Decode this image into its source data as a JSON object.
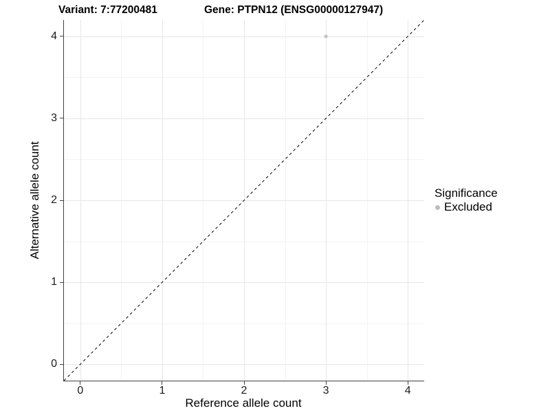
{
  "header": {
    "variant_title": "Variant: 7:77200481",
    "gene_title": "Gene: PTPN12 (ENSG00000127947)"
  },
  "chart_data": {
    "type": "scatter",
    "xlabel": "Reference allele count",
    "ylabel": "Alternative allele count",
    "xlim": [
      -0.2,
      4.2
    ],
    "ylim": [
      -0.2,
      4.2
    ],
    "x_ticks": [
      0,
      1,
      2,
      3,
      4
    ],
    "y_ticks": [
      0,
      1,
      2,
      3,
      4
    ],
    "grid": "major-and-minor",
    "points": [
      {
        "x": 3,
        "y": 4,
        "series": "Excluded"
      }
    ],
    "reference_line": {
      "style": "dashed",
      "x1": -0.2,
      "y1": -0.2,
      "x2": 4.2,
      "y2": 4.2
    },
    "legend": {
      "position": "right",
      "title": "Significance",
      "items": [
        {
          "label": "Excluded",
          "color": "#bdbdbd"
        }
      ]
    },
    "colors": {
      "point": "#c3c3c3",
      "grid_major": "#e6e6e6",
      "grid_minor": "#f3f3f3",
      "axis_line": "#404040",
      "reference_line": "#000000",
      "background": "#ffffff"
    }
  }
}
